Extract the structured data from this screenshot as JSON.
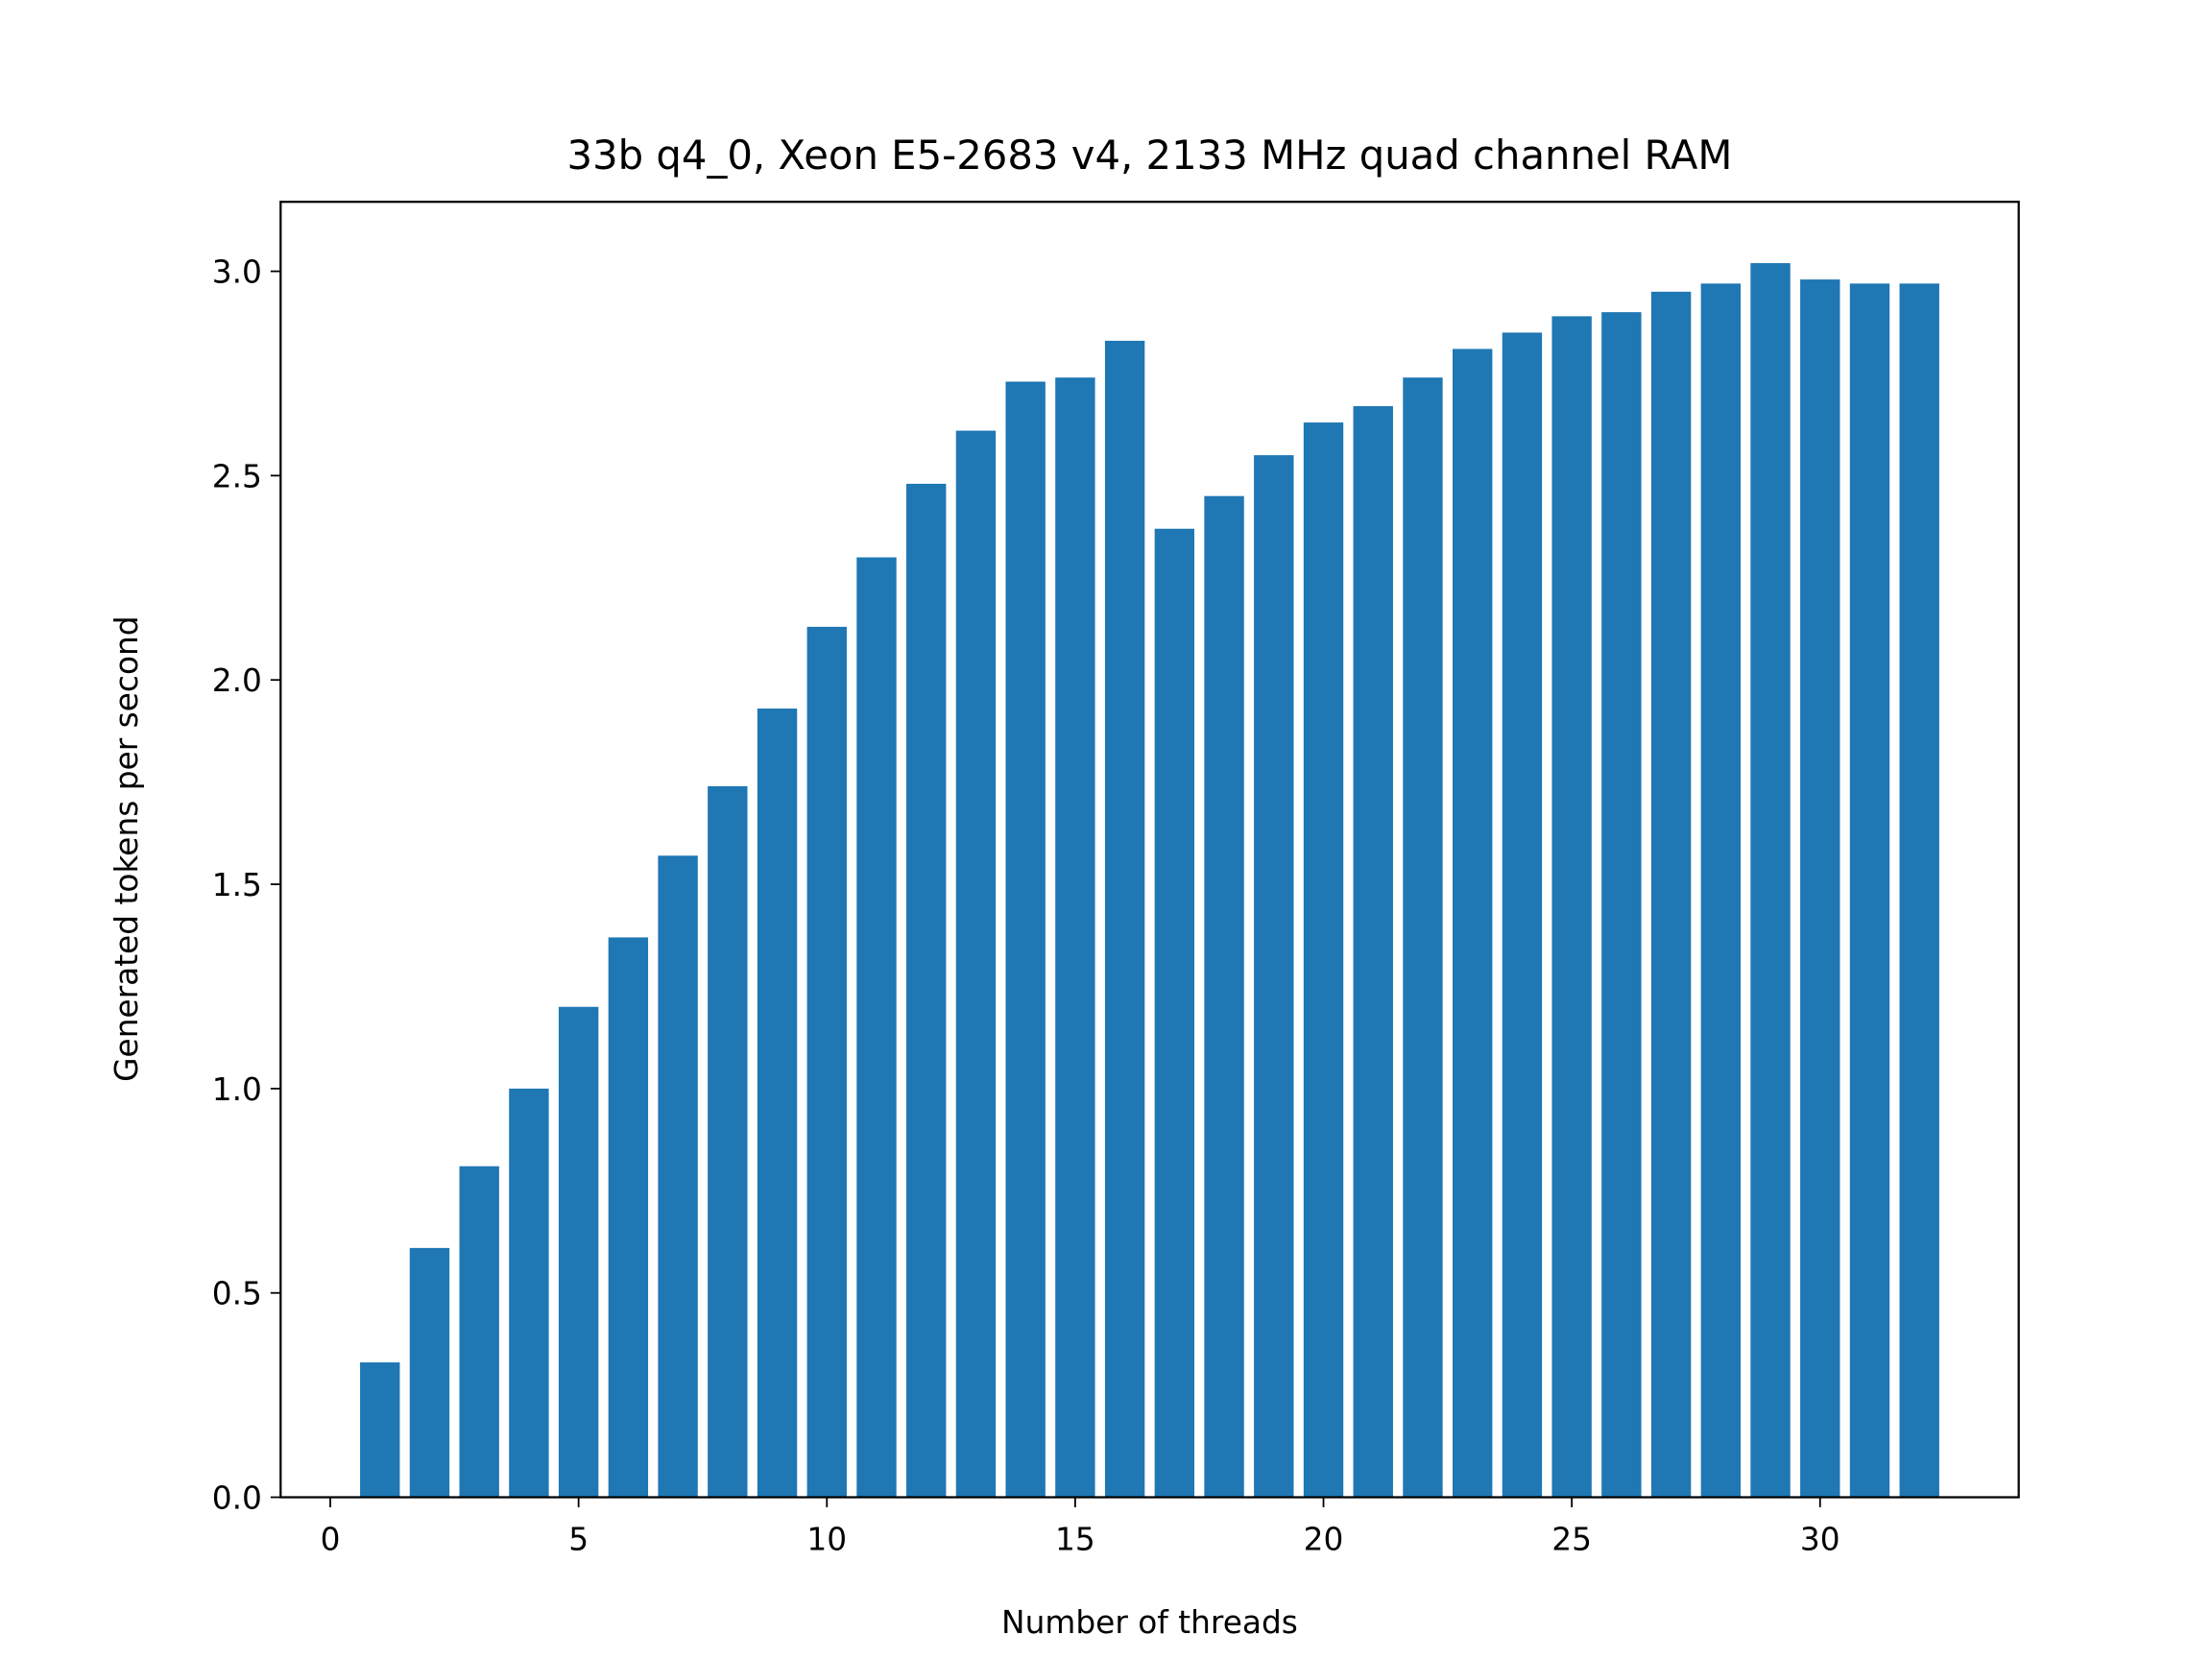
{
  "chart_data": {
    "type": "bar",
    "title": "33b q4_0, Xeon E5-2683 v4, 2133 MHz quad channel RAM",
    "xlabel": "Number of threads",
    "ylabel": "Generated tokens per second",
    "x": [
      1,
      2,
      3,
      4,
      5,
      6,
      7,
      8,
      9,
      10,
      11,
      12,
      13,
      14,
      15,
      16,
      17,
      18,
      19,
      20,
      21,
      22,
      23,
      24,
      25,
      26,
      27,
      28,
      29,
      30,
      31,
      32
    ],
    "values": [
      0.33,
      0.61,
      0.81,
      1.0,
      1.2,
      1.37,
      1.57,
      1.74,
      1.93,
      2.13,
      2.3,
      2.48,
      2.61,
      2.73,
      2.74,
      2.83,
      2.37,
      2.45,
      2.55,
      2.63,
      2.67,
      2.74,
      2.81,
      2.85,
      2.89,
      2.9,
      2.95,
      2.97,
      3.02,
      2.98,
      2.97,
      2.97
    ],
    "xlim": [
      -1.0,
      34.0
    ],
    "ylim": [
      0,
      3.17
    ],
    "xticks": [
      "0",
      "5",
      "10",
      "15",
      "20",
      "25",
      "30"
    ],
    "yticks": [
      "0.0",
      "0.5",
      "1.0",
      "1.5",
      "2.0",
      "2.5",
      "3.0"
    ],
    "grid": false,
    "bar_color": "#1f77b4"
  }
}
